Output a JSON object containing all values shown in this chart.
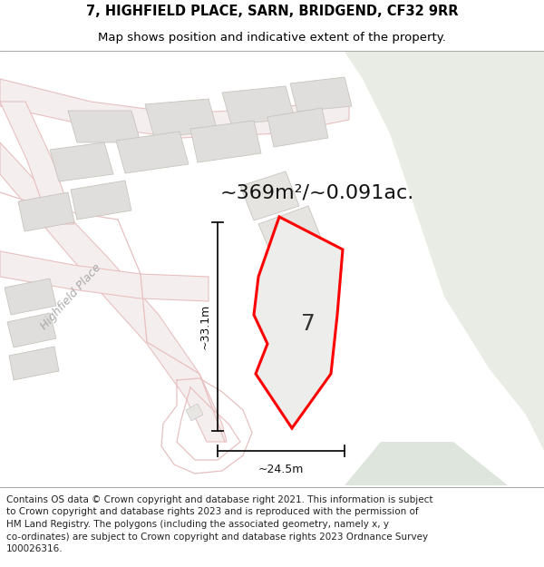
{
  "title_line1": "7, HIGHFIELD PLACE, SARN, BRIDGEND, CF32 9RR",
  "title_line2": "Map shows position and indicative extent of the property.",
  "area_text": "~369m²/~0.091ac.",
  "label_7": "7",
  "dim_vertical": "~33.1m",
  "dim_horizontal": "~24.5m",
  "street_label": "Highfield Place",
  "bg_color_main": "#f2f1ef",
  "bg_color_green": "#e8ece5",
  "bg_color_green2": "#dde5dc",
  "road_stroke": "#e8c0c0",
  "road_fill": "#f5f0f0",
  "building_fill": "#e0dedd",
  "building_edge": "#c8c4be",
  "plot_fill": "#ededeb",
  "plot_edge": "#ff0000",
  "dim_line_color": "#111111",
  "street_label_color": "#aaaaaa",
  "title_fontsize": 10.5,
  "subtitle_fontsize": 9.5,
  "area_fontsize": 16,
  "label7_fontsize": 18,
  "dim_fontsize": 9,
  "street_fontsize": 9,
  "footer_fontsize": 7.5,
  "footer_lines": [
    "Contains OS data © Crown copyright and database right 2021. This information is subject",
    "to Crown copyright and database rights 2023 and is reproduced with the permission of",
    "HM Land Registry. The polygons (including the associated geometry, namely x, y",
    "co-ordinates) are subject to Crown copyright and database rights 2023 Ordnance Survey",
    "100026316."
  ]
}
